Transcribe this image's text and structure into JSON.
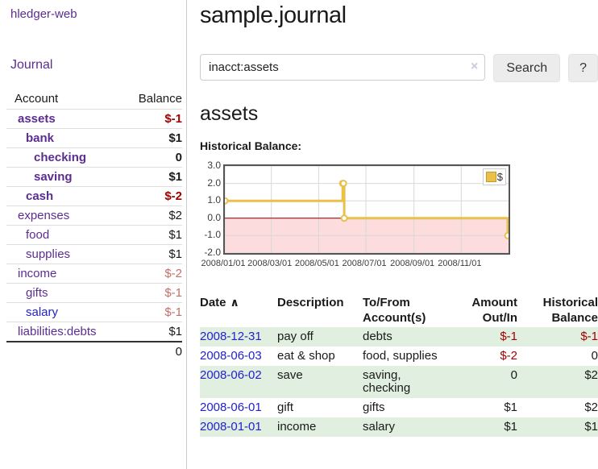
{
  "app": {
    "title": "hledger-web",
    "nav": {
      "journal": "Journal"
    }
  },
  "colors": {
    "link_purple": "#5c2d91",
    "link_blue": "#2222cc",
    "negative_strong": "#a40000",
    "negative_soft": "#c0706a",
    "plain": "#1a1a1a",
    "row_stripe_green": "#e1efe0"
  },
  "sidebar": {
    "columns": {
      "account": "Account",
      "balance": "Balance"
    },
    "accounts": [
      {
        "name": "assets",
        "balance": "$-1",
        "name_color": "#5c2d91",
        "balance_color": "#a40000"
      },
      {
        "name": "bank",
        "balance": "$1",
        "name_color": "#5c2d91",
        "balance_color": "#1a1a1a"
      },
      {
        "name": "checking",
        "balance": "0",
        "name_color": "#5c2d91",
        "balance_color": "#1a1a1a"
      },
      {
        "name": "saving",
        "balance": "$1",
        "name_color": "#5c2d91",
        "balance_color": "#1a1a1a"
      },
      {
        "name": "cash",
        "balance": "$-2",
        "name_color": "#5c2d91",
        "balance_color": "#a40000"
      },
      {
        "name": "expenses",
        "balance": "$2",
        "name_color": "#5c2d91",
        "balance_color": "#1a1a1a"
      },
      {
        "name": "food",
        "balance": "$1",
        "name_color": "#5c2d91",
        "balance_color": "#1a1a1a"
      },
      {
        "name": "supplies",
        "balance": "$1",
        "name_color": "#5c2d91",
        "balance_color": "#1a1a1a"
      },
      {
        "name": "income",
        "balance": "$-2",
        "name_color": "#5c2d91",
        "balance_color": "#c0706a"
      },
      {
        "name": "gifts",
        "balance": "$-1",
        "name_color": "#5c2d91",
        "balance_color": "#c0706a"
      },
      {
        "name": "salary",
        "balance": "$-1",
        "name_color": "#2222cc",
        "balance_color": "#c0706a"
      },
      {
        "name": "liabilities:debts",
        "balance": "$1",
        "name_color": "#5c2d91",
        "balance_color": "#1a1a1a"
      }
    ],
    "total": "0"
  },
  "header": {
    "title": "sample.journal"
  },
  "search": {
    "value": "inacct:assets",
    "clear_icon": "×",
    "search_button": "Search",
    "help_button": "?"
  },
  "register": {
    "account_heading": "assets",
    "chart_heading": "Historical Balance:",
    "table": {
      "sort_icon": "∧",
      "columns": [
        "Date",
        "Description",
        "To/From Account(s)",
        "Amount Out/In",
        "Historical Balance"
      ],
      "rows": [
        {
          "date": "2008-12-31",
          "description": "pay off",
          "accounts": "debts",
          "amount": "$-1",
          "amount_color": "#a40000",
          "balance": "$-1",
          "balance_color": "#a40000"
        },
        {
          "date": "2008-06-03",
          "description": "eat & shop",
          "accounts": "food, supplies",
          "amount": "$-2",
          "amount_color": "#a40000",
          "balance": "0",
          "balance_color": "#1a1a1a"
        },
        {
          "date": "2008-06-02",
          "description": "save",
          "accounts": "saving, checking",
          "amount": "0",
          "amount_color": "#1a1a1a",
          "balance": "$2",
          "balance_color": "#1a1a1a"
        },
        {
          "date": "2008-06-01",
          "description": "gift",
          "accounts": "gifts",
          "amount": "$1",
          "amount_color": "#1a1a1a",
          "balance": "$2",
          "balance_color": "#1a1a1a"
        },
        {
          "date": "2008-01-01",
          "description": "income",
          "accounts": "salary",
          "amount": "$1",
          "amount_color": "#1a1a1a",
          "balance": "$1",
          "balance_color": "#1a1a1a"
        }
      ]
    }
  },
  "chart_data": {
    "type": "line",
    "title": "Historical Balance",
    "legend": "$",
    "step": true,
    "series": [
      {
        "name": "$",
        "color": "#e8c04a",
        "points": [
          [
            "2008-01-01",
            1
          ],
          [
            "2008-06-01",
            2
          ],
          [
            "2008-06-02",
            2
          ],
          [
            "2008-06-03",
            0
          ],
          [
            "2008-12-31",
            -1
          ]
        ]
      }
    ],
    "x_range": [
      "2008-01-01",
      "2009-01-01"
    ],
    "ylim": [
      -2,
      3
    ],
    "y_ticks": [
      3,
      2,
      1,
      0,
      -1,
      -2
    ],
    "x_ticks": [
      "2008/01/01",
      "2008/03/01",
      "2008/05/01",
      "2008/07/01",
      "2008/09/01",
      "2008/11/01"
    ],
    "grid": true,
    "legend_position": "top-right",
    "zero_line_color": "#8b0000",
    "negative_region_color": "#fcdcdc",
    "grid_color": "#d8d8d8"
  }
}
